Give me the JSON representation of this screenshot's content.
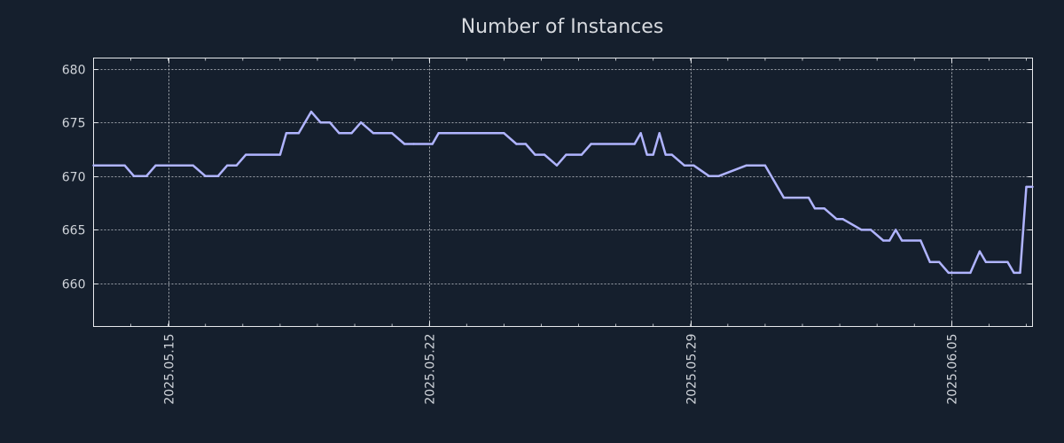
{
  "chart_data": {
    "type": "line",
    "title": "Number of Instances",
    "xlabel": "",
    "ylabel": "",
    "ylim": [
      656,
      681
    ],
    "xlim": [
      "2025-05-13",
      "2025-06-07T04:00"
    ],
    "grid": true,
    "line_color": "#b0b4ff",
    "yticks": [
      660,
      665,
      670,
      675,
      680
    ],
    "ytick_labels": [
      "660",
      "665",
      "670",
      "675",
      "680"
    ],
    "xticks": [
      "2025-05-15",
      "2025-05-22",
      "2025-05-29",
      "2025-06-05"
    ],
    "xtick_labels": [
      "2025.05.15",
      "2025.05.22",
      "2025.05.29",
      "2025.06.05"
    ],
    "series": [
      {
        "name": "Number of Instances",
        "x": [
          "2025-05-13T00:00",
          "2025-05-13T20:00",
          "2025-05-14T02:00",
          "2025-05-14T10:00",
          "2025-05-14T16:00",
          "2025-05-15T16:00",
          "2025-05-16T00:00",
          "2025-05-16T08:00",
          "2025-05-16T14:00",
          "2025-05-16T20:00",
          "2025-05-17T02:00",
          "2025-05-18T00:00",
          "2025-05-18T04:00",
          "2025-05-18T12:00",
          "2025-05-18T20:00",
          "2025-05-19T02:00",
          "2025-05-19T08:00",
          "2025-05-19T14:00",
          "2025-05-19T22:00",
          "2025-05-20T04:00",
          "2025-05-20T12:00",
          "2025-05-20T18:00",
          "2025-05-21T00:00",
          "2025-05-21T08:00",
          "2025-05-21T14:00",
          "2025-05-22T02:00",
          "2025-05-22T06:00",
          "2025-05-24T00:00",
          "2025-05-24T08:00",
          "2025-05-24T14:00",
          "2025-05-24T20:00",
          "2025-05-25T02:00",
          "2025-05-25T10:00",
          "2025-05-25T16:00",
          "2025-05-26T02:00",
          "2025-05-26T08:00",
          "2025-05-27T12:00",
          "2025-05-27T16:00",
          "2025-05-27T20:00",
          "2025-05-28T00:00",
          "2025-05-28T04:00",
          "2025-05-28T08:00",
          "2025-05-28T12:00",
          "2025-05-28T20:00",
          "2025-05-29T02:00",
          "2025-05-29T12:00",
          "2025-05-29T18:00",
          "2025-05-30T12:00",
          "2025-05-31T00:00",
          "2025-05-31T12:00",
          "2025-06-01T04:00",
          "2025-06-01T08:00",
          "2025-06-01T14:00",
          "2025-06-01T22:00",
          "2025-06-02T02:00",
          "2025-06-02T14:00",
          "2025-06-02T20:00",
          "2025-06-03T04:00",
          "2025-06-03T08:00",
          "2025-06-03T12:00",
          "2025-06-03T16:00",
          "2025-06-04T04:00",
          "2025-06-04T10:00",
          "2025-06-04T16:00",
          "2025-06-04T22:00",
          "2025-06-05T12:00",
          "2025-06-05T18:00",
          "2025-06-05T22:00",
          "2025-06-06T12:00",
          "2025-06-06T16:00",
          "2025-06-06T20:00",
          "2025-06-07T00:00",
          "2025-06-07T04:00"
        ],
        "values": [
          671,
          671,
          670,
          670,
          671,
          671,
          670,
          670,
          671,
          671,
          672,
          672,
          674,
          674,
          676,
          675,
          675,
          674,
          674,
          675,
          674,
          674,
          674,
          673,
          673,
          673,
          674,
          674,
          673,
          673,
          672,
          672,
          671,
          672,
          672,
          673,
          673,
          674,
          672,
          672,
          674,
          672,
          672,
          671,
          671,
          670,
          670,
          671,
          671,
          668,
          668,
          667,
          667,
          666,
          666,
          665,
          665,
          664,
          664,
          665,
          664,
          664,
          662,
          662,
          661,
          661,
          663,
          662,
          662,
          661,
          661,
          669,
          669
        ]
      }
    ]
  }
}
